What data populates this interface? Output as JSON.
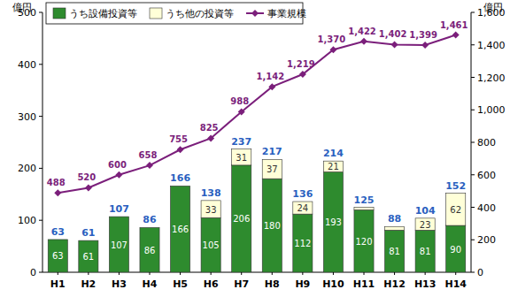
{
  "chart_data": {
    "type": "bar",
    "stacked": true,
    "data_labels": true,
    "legend": "upper left",
    "grid": false,
    "ylabel": "億円",
    "y2label": "億円",
    "categories": [
      "H1",
      "H2",
      "H3",
      "H4",
      "H5",
      "H6",
      "H7",
      "H8",
      "H9",
      "H10",
      "H11",
      "H12",
      "H13",
      "H14"
    ],
    "series": [
      {
        "name": "うち設備投資等",
        "type": "bar",
        "color": "#2e8b2e",
        "values": [
          63,
          61,
          107,
          86,
          166,
          105,
          206,
          180,
          112,
          193,
          120,
          81,
          81,
          90
        ]
      },
      {
        "name": "うち他の投資等",
        "type": "bar",
        "color": "#ffffd8",
        "values": [
          null,
          null,
          null,
          null,
          null,
          33,
          31,
          37,
          24,
          21,
          5,
          7,
          23,
          62
        ],
        "value_labels": [
          null,
          null,
          null,
          null,
          null,
          "33",
          "31",
          "37",
          "24",
          "21",
          null,
          null,
          "23",
          "62"
        ]
      },
      {
        "name": "事業規模",
        "type": "line",
        "axis": "y2",
        "color": "#7b1f7b",
        "marker": "diamond",
        "values": [
          488,
          520,
          600,
          658,
          755,
          825,
          988,
          1142,
          1219,
          1370,
          1422,
          1402,
          1399,
          1461
        ],
        "value_labels": [
          "488",
          "520",
          "600",
          "658",
          "755",
          "825",
          "988",
          "1,142",
          "1,219",
          "1,370",
          "1,422",
          "1,402",
          "1,399",
          "1,461"
        ]
      }
    ],
    "totals": [
      63,
      61,
      107,
      86,
      166,
      138,
      237,
      217,
      136,
      214,
      125,
      88,
      104,
      152
    ],
    "ylim": [
      0,
      500
    ],
    "yticks": [
      0,
      100,
      200,
      300,
      400,
      500
    ],
    "y2lim": [
      0,
      1600
    ],
    "y2ticks": [
      0,
      200,
      400,
      600,
      800,
      {
        "value": 1000,
        "label": "1,000"
      },
      {
        "value": 1200,
        "label": "1,200"
      },
      {
        "value": 1400,
        "label": "1,400"
      },
      {
        "value": 1600,
        "label": "1,600"
      }
    ]
  }
}
